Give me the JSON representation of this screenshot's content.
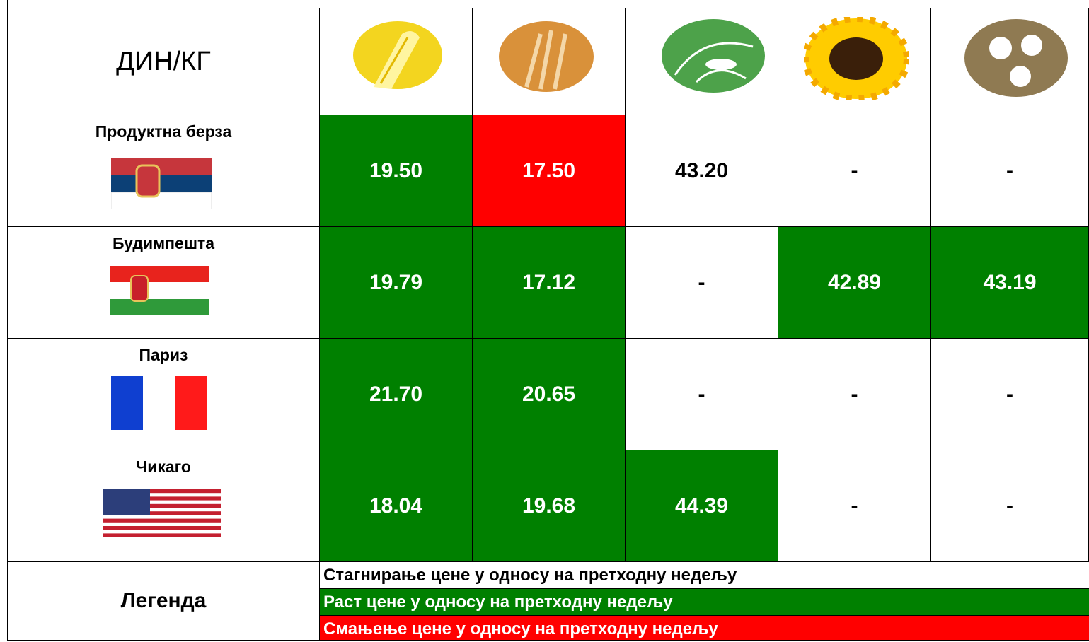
{
  "header": {
    "unit": "ДИН/КГ"
  },
  "table": {
    "rows": [
      {
        "label": "Продуктна берза",
        "cells": [
          {
            "text": "19.50",
            "color": "#008000"
          },
          {
            "text": "17.50",
            "color": "#ff0000"
          },
          {
            "text": "43.20",
            "color": "#ffffff"
          },
          {
            "text": "-",
            "color": "#ffffff"
          },
          {
            "text": "-",
            "color": "#ffffff"
          }
        ]
      },
      {
        "label": "Будимпешта",
        "cells": [
          {
            "text": "19.79",
            "color": "#008000"
          },
          {
            "text": "17.12",
            "color": "#008000"
          },
          {
            "text": "-",
            "color": "#ffffff"
          },
          {
            "text": "42.89",
            "color": "#008000"
          },
          {
            "text": "43.19",
            "color": "#008000"
          }
        ]
      },
      {
        "label": "Париз",
        "cells": [
          {
            "text": "21.70",
            "color": "#008000"
          },
          {
            "text": "20.65",
            "color": "#008000"
          },
          {
            "text": "-",
            "color": "#ffffff"
          },
          {
            "text": "-",
            "color": "#ffffff"
          },
          {
            "text": "-",
            "color": "#ffffff"
          }
        ]
      },
      {
        "label": "Чикаго",
        "cells": [
          {
            "text": "18.04",
            "color": "#008000"
          },
          {
            "text": "19.68",
            "color": "#008000"
          },
          {
            "text": "44.39",
            "color": "#008000"
          },
          {
            "text": "-",
            "color": "#ffffff"
          },
          {
            "text": "-",
            "color": "#ffffff"
          }
        ]
      }
    ]
  },
  "legend": {
    "title": "Легенда",
    "items": [
      {
        "text": "Стагнирање цене у односу на претходну недељу",
        "color": "#ffffff"
      },
      {
        "text": "Раст цене у односу на претходну недељу",
        "color": "#008000"
      },
      {
        "text": "Смањење цене у односу на претходну недељу",
        "color": "#ff0000"
      }
    ]
  }
}
